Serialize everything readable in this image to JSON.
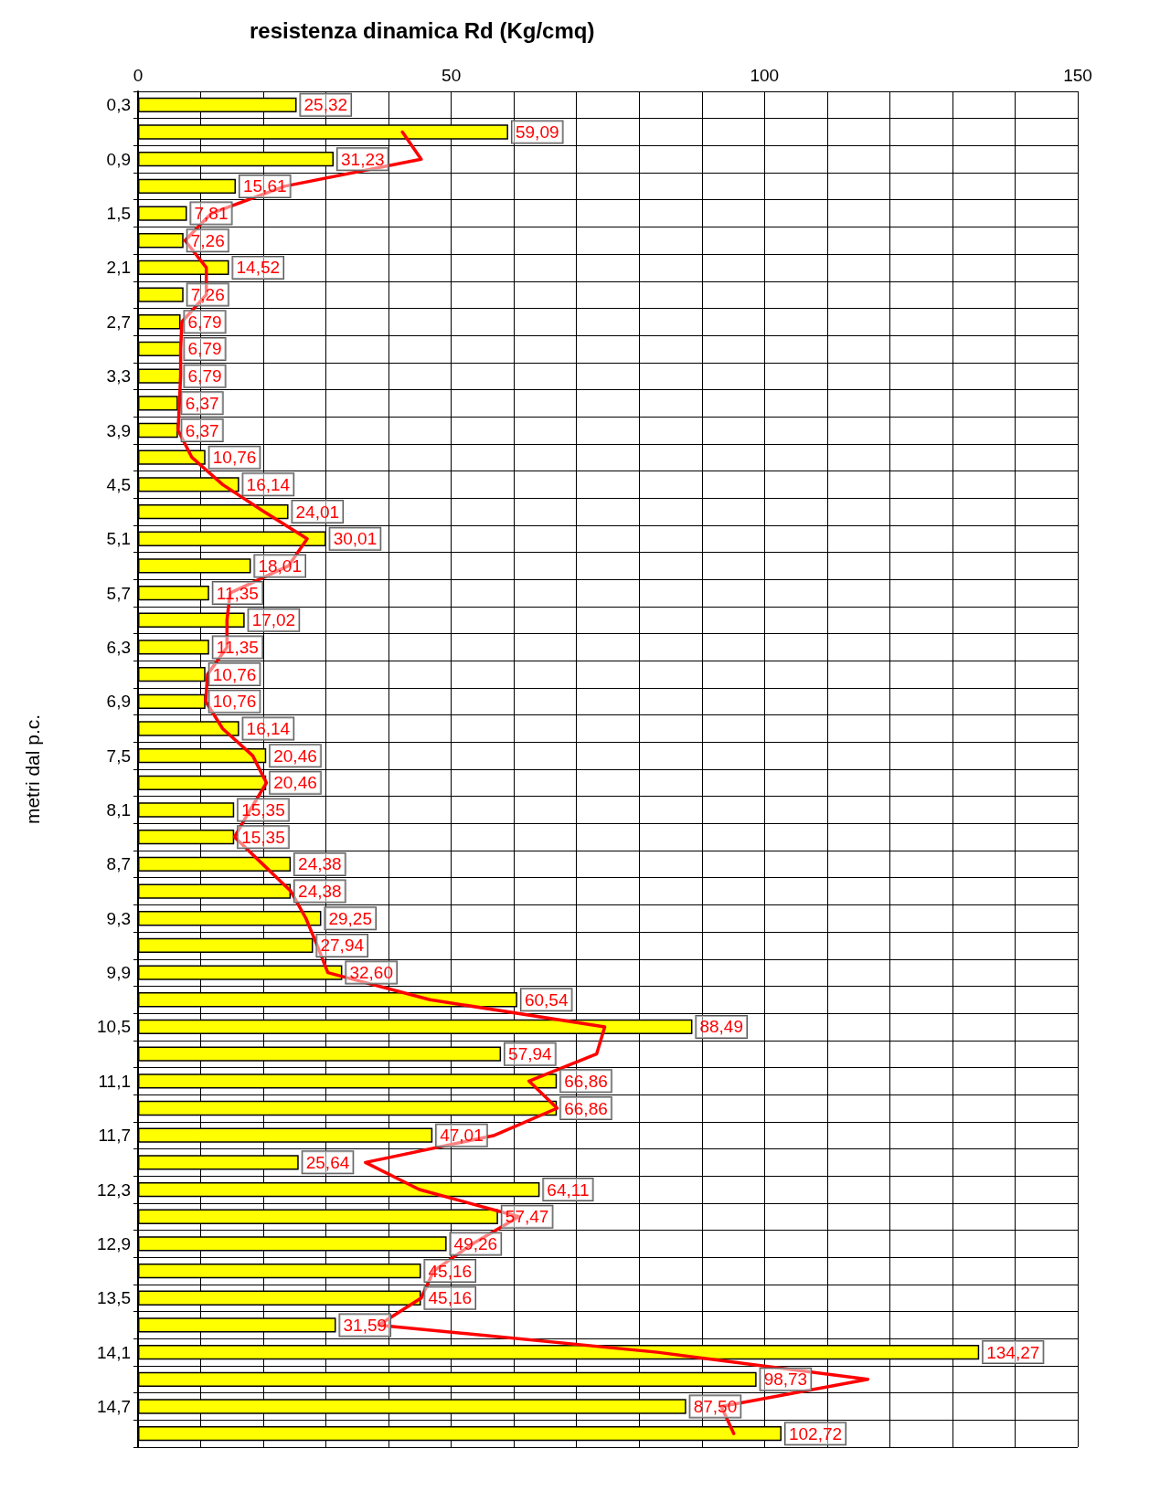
{
  "chart_data": {
    "type": "bar",
    "orientation": "horizontal",
    "title": "resistenza dinamica Rd (Kg/cmq)",
    "ylabel": "metri dal p.c.",
    "categories": [
      "0,3",
      null,
      "0,9",
      null,
      "1,5",
      null,
      "2,1",
      null,
      "2,7",
      null,
      "3,3",
      null,
      "3,9",
      null,
      "4,5",
      null,
      "5,1",
      null,
      "5,7",
      null,
      "6,3",
      null,
      "6,9",
      null,
      "7,5",
      null,
      "8,1",
      null,
      "8,7",
      null,
      "9,3",
      null,
      "9,9",
      null,
      "10,5",
      null,
      "11,1",
      null,
      "11,7",
      null,
      "12,3",
      null,
      "12,9",
      null,
      "13,5",
      null,
      "14,1",
      null,
      "14,7",
      null
    ],
    "series": [
      {
        "color": "#ffff00",
        "values": [
          25.32,
          59.09,
          31.23,
          15.61,
          7.81,
          7.26,
          14.52,
          7.26,
          6.79,
          6.79,
          6.79,
          6.37,
          6.37,
          10.76,
          16.14,
          24.01,
          30.01,
          18.01,
          11.35,
          17.02,
          11.35,
          10.76,
          10.76,
          16.14,
          20.46,
          20.46,
          15.35,
          15.35,
          24.38,
          24.38,
          29.25,
          27.94,
          32.6,
          60.54,
          88.49,
          57.94,
          66.86,
          66.86,
          47.01,
          25.64,
          64.11,
          57.47,
          49.26,
          45.16,
          45.16,
          31.59,
          134.27,
          98.73,
          87.5,
          102.72
        ],
        "value_labels": [
          "25,32",
          "59,09",
          "31,23",
          "15,61",
          "7,81",
          "7,26",
          "14,52",
          "7,26",
          "6,79",
          "6,79",
          "6,79",
          "6,37",
          "6,37",
          "10,76",
          "16,14",
          "24,01",
          "30,01",
          "18,01",
          "11,35",
          "17,02",
          "11,35",
          "10,76",
          "10,76",
          "16,14",
          "20,46",
          "20,46",
          "15,35",
          "15,35",
          "24,38",
          "24,38",
          "29,25",
          "27,94",
          "32,60",
          "60,54",
          "88,49",
          "57,94",
          "66,86",
          "66,86",
          "47,01",
          "25,64",
          "64,11",
          "57,47",
          "49,26",
          "45,16",
          "45,16",
          "31,59",
          "134,27",
          "98,73",
          "87,50",
          "102,72"
        ]
      },
      {
        "type": "line",
        "color": "#ff0000",
        "values": [
          null,
          42.2,
          45.2,
          23.4,
          11.7,
          7.5,
          10.9,
          10.9,
          7.0,
          6.8,
          6.8,
          6.6,
          6.4,
          8.6,
          13.5,
          20.1,
          27.0,
          24.0,
          14.7,
          14.2,
          14.2,
          11.1,
          10.8,
          13.5,
          18.3,
          20.5,
          17.9,
          15.4,
          19.9,
          24.4,
          26.8,
          28.6,
          30.3,
          46.6,
          74.5,
          73.2,
          62.4,
          66.9,
          56.9,
          36.3,
          44.9,
          60.8,
          53.4,
          47.2,
          45.2,
          38.4,
          82.9,
          116.5,
          93.1,
          95.1
        ]
      }
    ],
    "xlim": [
      0,
      150
    ],
    "xticks": [
      0,
      {
        "value": 10,
        "label": null
      },
      {
        "value": 20,
        "label": null
      },
      {
        "value": 30,
        "label": null
      },
      {
        "value": 40,
        "label": null
      },
      50,
      {
        "value": 60,
        "label": null
      },
      {
        "value": 70,
        "label": null
      },
      {
        "value": 80,
        "label": null
      },
      {
        "value": 90,
        "label": null
      },
      100,
      {
        "value": 110,
        "label": null
      },
      {
        "value": 120,
        "label": null
      },
      {
        "value": 130,
        "label": null
      },
      {
        "value": 140,
        "label": null
      },
      150
    ],
    "grid": true,
    "marker": "none",
    "line_style": "solid"
  }
}
